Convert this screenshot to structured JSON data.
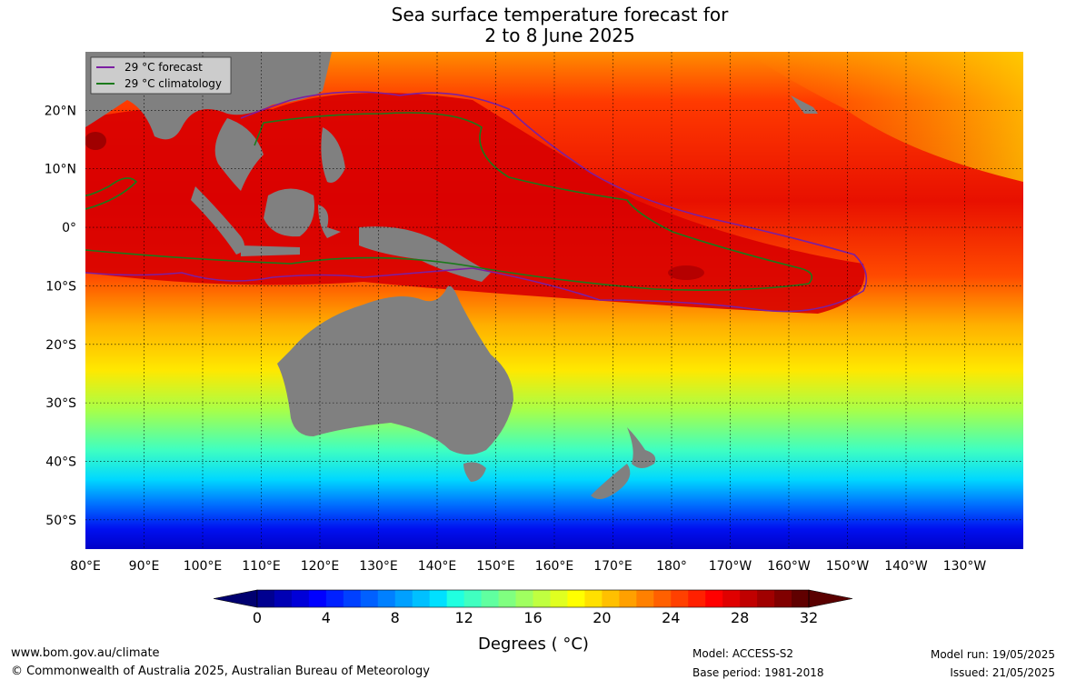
{
  "title": {
    "line1": "Sea surface temperature forecast for",
    "line2": "2 to 8 June 2025"
  },
  "map": {
    "longitude_labels": [
      "80°E",
      "90°E",
      "100°E",
      "110°E",
      "120°E",
      "130°E",
      "140°E",
      "150°E",
      "160°E",
      "170°E",
      "180°",
      "170°W",
      "160°W",
      "150°W",
      "140°W",
      "130°W"
    ],
    "latitude_labels": [
      "20°N",
      "10°N",
      "0°",
      "10°S",
      "20°S",
      "30°S",
      "40°S",
      "50°S"
    ],
    "extent": {
      "lon_min": 80,
      "lon_max": 240,
      "lat_min": -55,
      "lat_max": 30
    },
    "legend": [
      {
        "label": "29 °C  forecast",
        "color": "#7b1fa2"
      },
      {
        "label": "29 °C  climatology",
        "color": "#1b7a1b"
      }
    ],
    "land_color": "#808080"
  },
  "colorbar": {
    "title": "Degrees ( °C)",
    "tick_labels": [
      "0",
      "4",
      "8",
      "12",
      "16",
      "20",
      "24",
      "28",
      "32"
    ],
    "range": [
      0,
      32
    ],
    "step": 1
  },
  "footer": {
    "website": "www.bom.gov.au/climate",
    "copyright": "© Commonwealth of Australia 2025, Australian Bureau of Meteorology",
    "model": "Model: ACCESS-S2",
    "base_period": "Base period: 1981-2018",
    "model_run": "Model run: 19/05/2025",
    "issued": "Issued: 21/05/2025"
  }
}
